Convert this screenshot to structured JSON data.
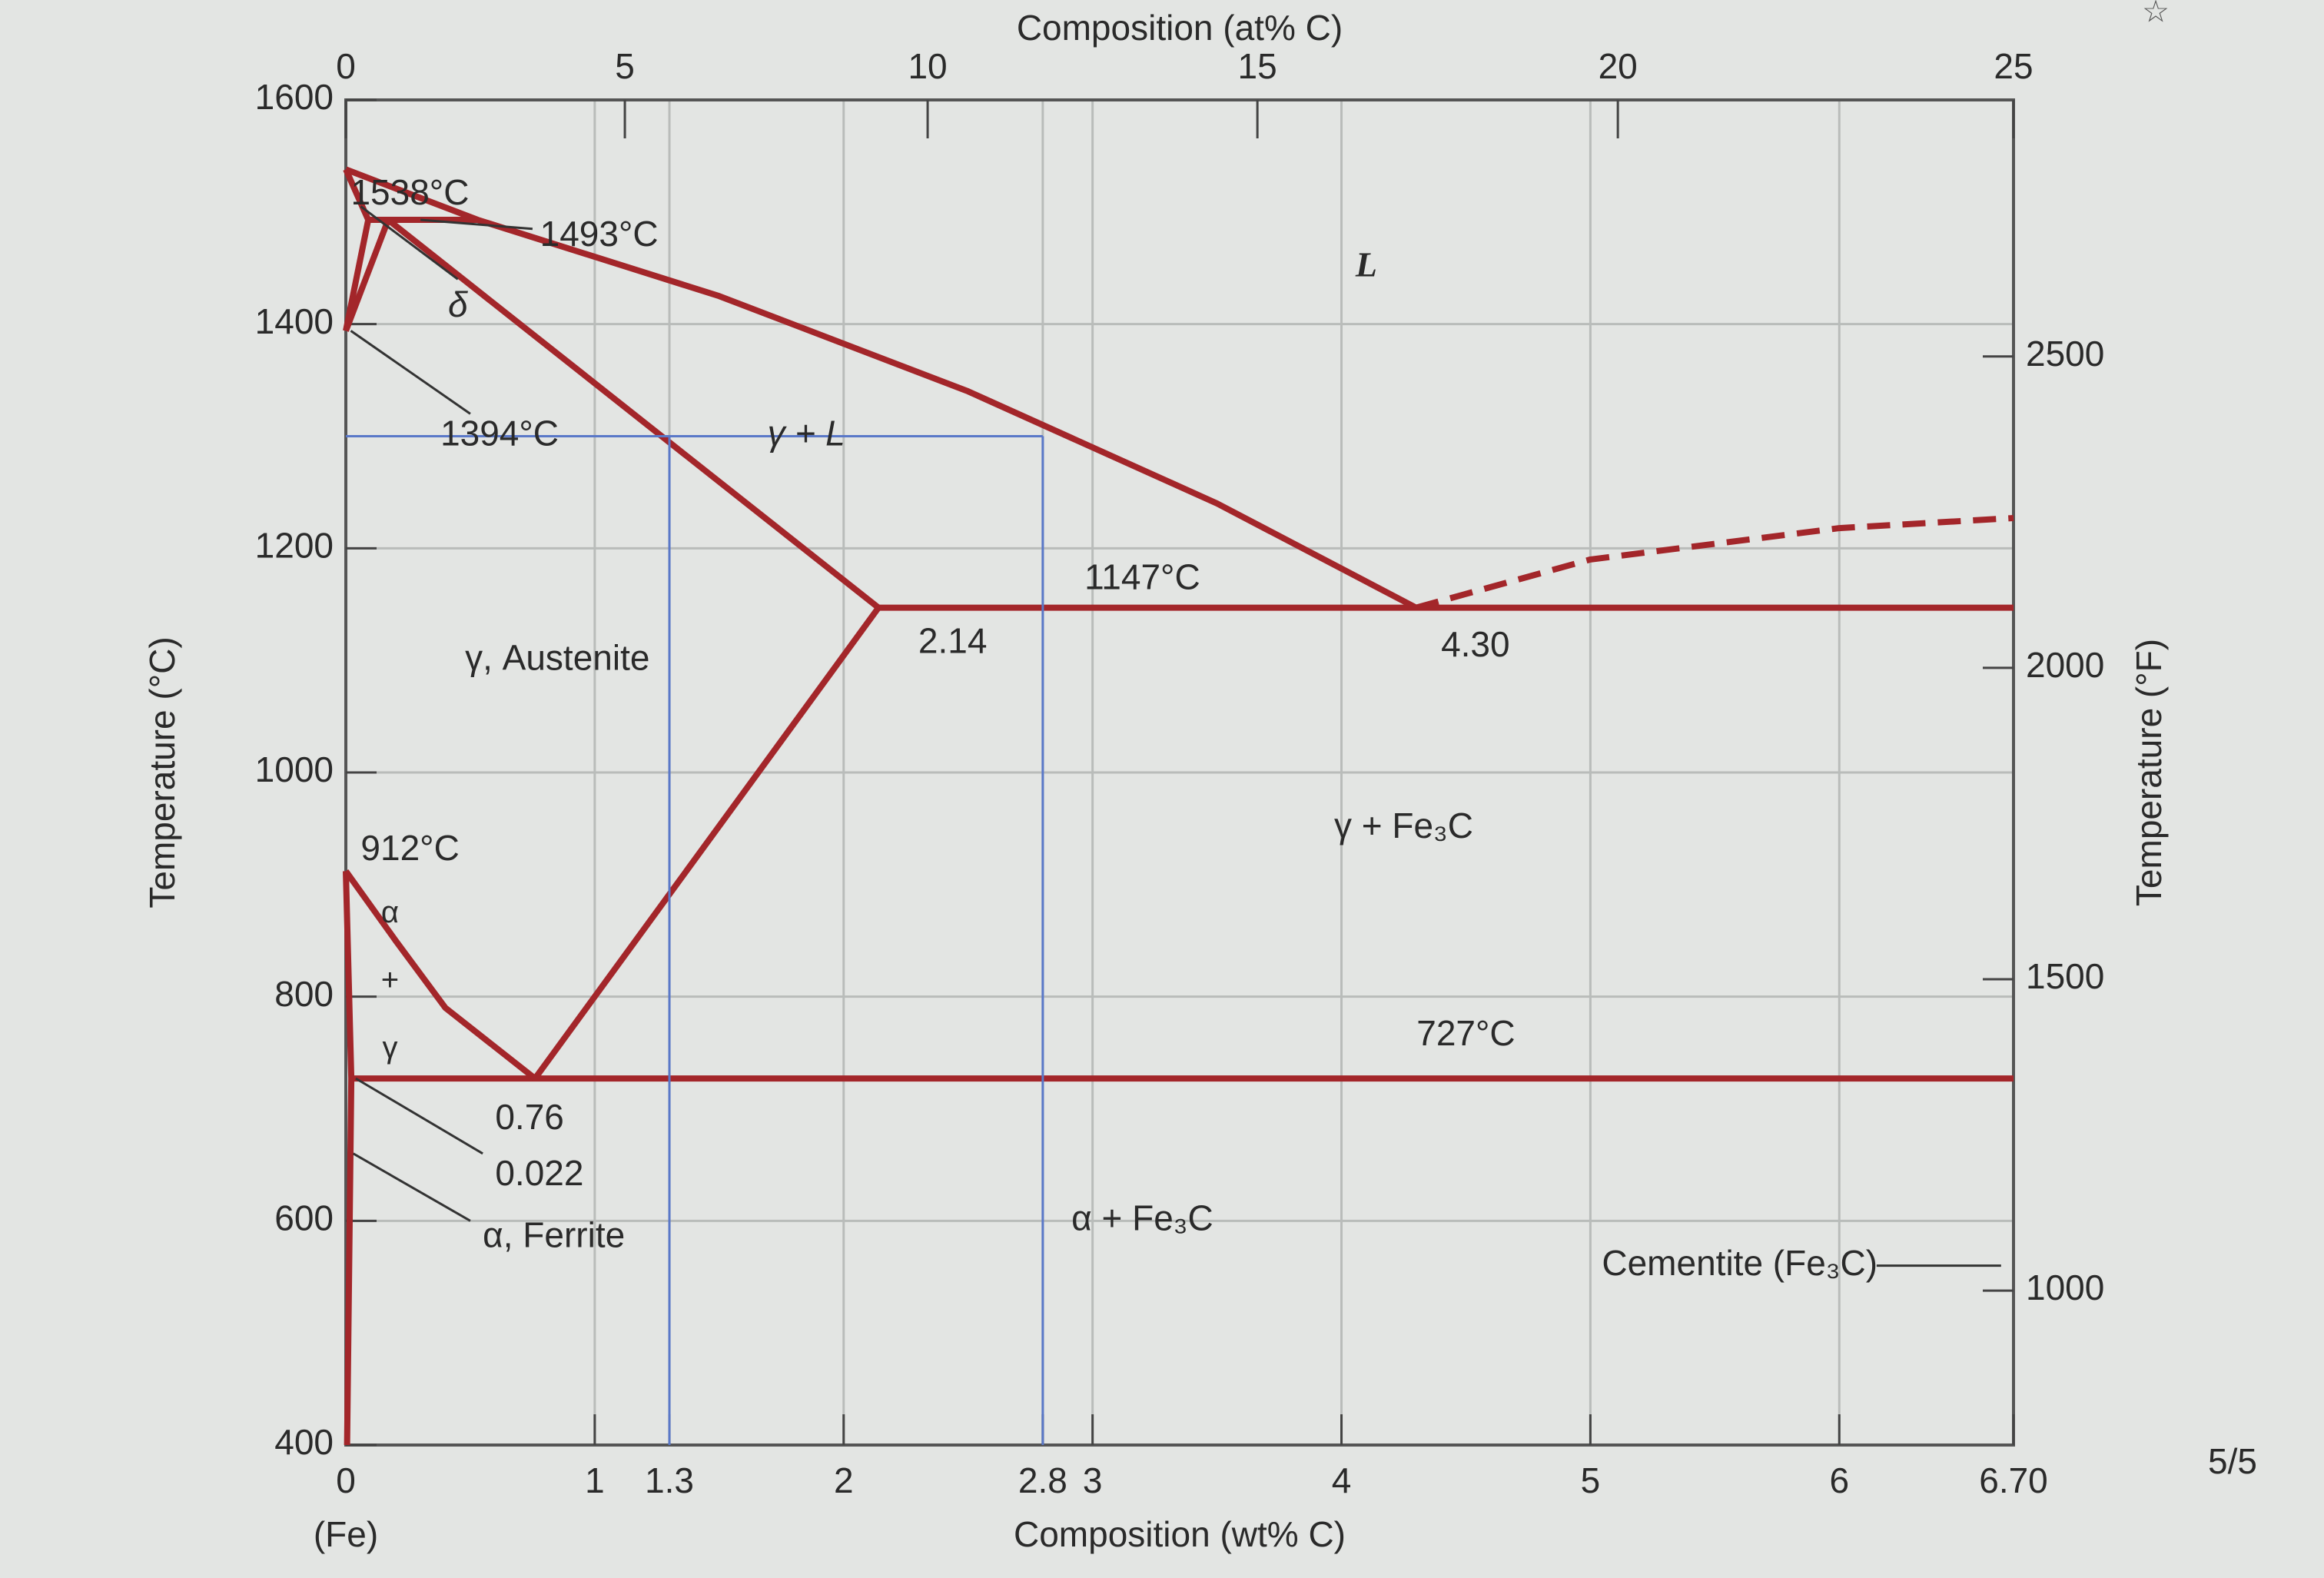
{
  "chart_data": {
    "type": "line",
    "x_label": "Composition (wt% C)",
    "x2_label": "Composition (at% C)",
    "y_label": "Temperature (°C)",
    "y2_label": "Temperature (°F)",
    "xlim": [
      0,
      6.7
    ],
    "xticks": [
      0,
      1,
      1.3,
      2,
      2.8,
      3,
      4,
      5,
      6,
      {
        "value": 6.7,
        "label": "6.70"
      }
    ],
    "x2lim": [
      0,
      25
    ],
    "x2ticks": [
      0,
      5,
      10,
      15,
      20,
      25
    ],
    "ylim": [
      400,
      1600
    ],
    "yticks": [
      400,
      600,
      800,
      1000,
      1200,
      1400,
      1600
    ],
    "y2lim": [
      752,
      2912
    ],
    "y2ticks": [
      1000,
      1500,
      2000,
      2500
    ],
    "grid": true,
    "series": [
      {
        "color": "#a3262a",
        "x": [
          0,
          0.53,
          1.5,
          2.5,
          3.5,
          4.3
        ],
        "values": [
          1538,
          1493,
          1425,
          1340,
          1240,
          1147
        ]
      },
      {
        "color": "#a3262a",
        "dashed": true,
        "x": [
          4.3,
          5,
          6,
          6.7
        ],
        "values": [
          1147,
          1190,
          1218,
          1227
        ]
      },
      {
        "color": "#a3262a",
        "x": [
          0.17,
          2.14
        ],
        "values": [
          1493,
          1147
        ]
      },
      {
        "color": "#a3262a",
        "x": [
          2.14,
          6.7
        ],
        "values": [
          1147,
          1147
        ]
      },
      {
        "color": "#a3262a",
        "x": [
          2.14,
          0.76
        ],
        "values": [
          1147,
          727
        ]
      },
      {
        "color": "#a3262a",
        "x": [
          0.022,
          6.7
        ],
        "values": [
          727,
          727
        ]
      },
      {
        "color": "#a3262a",
        "x": [
          0,
          0.2,
          0.4,
          0.76
        ],
        "values": [
          912,
          850,
          790,
          727
        ]
      },
      {
        "color": "#a3262a",
        "x": [
          0,
          0.022,
          0.005
        ],
        "values": [
          912,
          727,
          400
        ]
      },
      {
        "color": "#a3262a",
        "x": [
          0,
          0.09,
          0
        ],
        "values": [
          1538,
          1493,
          1394
        ]
      },
      {
        "color": "#a3262a",
        "x": [
          0,
          0.17
        ],
        "values": [
          1394,
          1493
        ]
      },
      {
        "color": "#a3262a",
        "x": [
          0.09,
          0.53
        ],
        "values": [
          1493,
          1493
        ]
      },
      {
        "color": "#5a78c8",
        "x": [
          0,
          2.8
        ],
        "values": [
          1300,
          1300
        ]
      },
      {
        "color": "#5a78c8",
        "x": [
          1.3,
          1.3
        ],
        "values": [
          400,
          1300
        ]
      },
      {
        "color": "#5a78c8",
        "x": [
          2.8,
          2.8
        ],
        "values": [
          400,
          1300
        ]
      }
    ],
    "annotations": [
      "1538°C",
      "1493°C",
      "δ",
      "1394°C",
      "γ + L",
      "L",
      "1147°C",
      "2.14",
      "4.30",
      "γ, Austenite",
      "912°C",
      "α + γ",
      "727°C",
      "0.76",
      "0.022",
      "α, Ferrite",
      "α + Fe₃C",
      "γ + Fe₃C",
      "Cementite (Fe₃C)",
      "(Fe)"
    ]
  },
  "page_label": "5/5"
}
